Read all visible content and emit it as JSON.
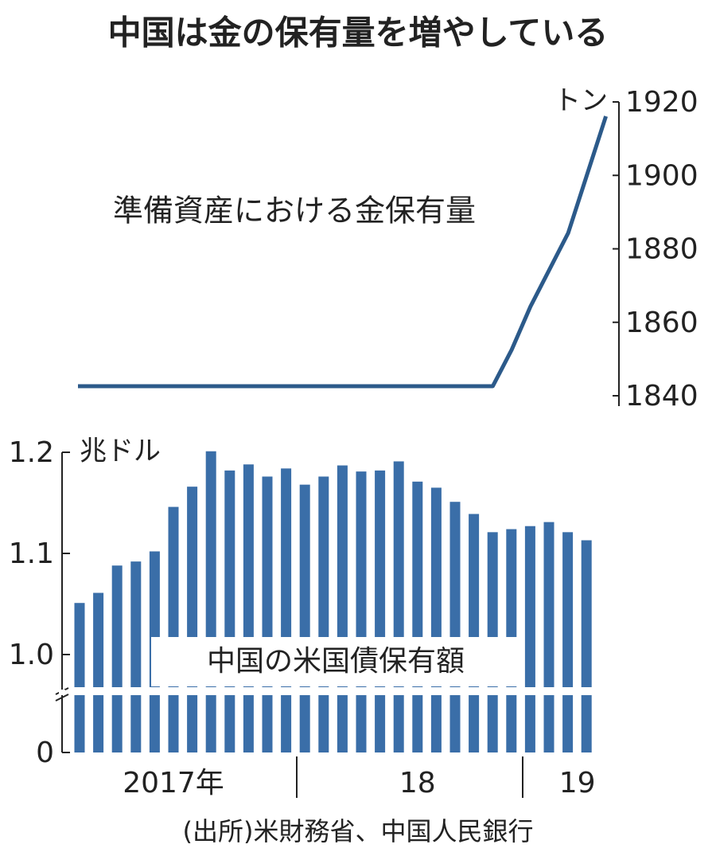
{
  "title": "中国は金の保有量を増やしている",
  "source": "(出所)米財務省、中国人民銀行",
  "chart_data": [
    {
      "type": "line",
      "annotation": "準備資産における金保有量",
      "y_label": "トン",
      "categories": [
        null,
        null,
        null,
        null,
        null,
        null,
        null,
        null,
        null,
        null,
        null,
        null,
        null,
        null,
        null,
        null,
        null,
        null,
        null,
        null,
        null,
        null,
        null,
        null,
        null,
        null,
        null,
        null,
        null
      ],
      "series": [
        {
          "name": "準備資産における金保有量",
          "color": "#2c5a8a",
          "values": [
            1842.6,
            1842.6,
            1842.6,
            1842.6,
            1842.6,
            1842.6,
            1842.6,
            1842.6,
            1842.6,
            1842.6,
            1842.6,
            1842.6,
            1842.6,
            1842.6,
            1842.6,
            1842.6,
            1842.6,
            1842.6,
            1842.6,
            1842.6,
            1842.6,
            1842.6,
            1842.6,
            1852.5,
            1864.3,
            1874.3,
            1884.3,
            1900.2,
            1916.1
          ]
        }
      ],
      "ylim": [
        1840,
        1920
      ],
      "yticks": [
        1840,
        1860,
        1880,
        1900,
        1920
      ],
      "y_axis_side": "right"
    },
    {
      "type": "bar",
      "annotation": "中国の米国債保有額",
      "y_label": "兆ドル",
      "categories": [
        null,
        null,
        null,
        null,
        null,
        "2017年",
        null,
        null,
        null,
        null,
        null,
        null,
        null,
        null,
        null,
        null,
        null,
        null,
        "18",
        null,
        null,
        null,
        null,
        null,
        null,
        null,
        "19",
        null
      ],
      "values": [
        1.051,
        1.061,
        1.088,
        1.092,
        1.102,
        1.146,
        1.166,
        1.201,
        1.182,
        1.188,
        1.176,
        1.184,
        1.168,
        1.176,
        1.187,
        1.181,
        1.182,
        1.191,
        1.171,
        1.165,
        1.151,
        1.139,
        1.121,
        1.124,
        1.127,
        1.131,
        1.121,
        1.113
      ],
      "color": "#3a6ea8",
      "ylim": [
        0,
        1.2
      ],
      "y_break": [
        0,
        1.0
      ],
      "yticks": [
        0,
        {
          "value": 1.0,
          "label": "1.0"
        },
        1.1,
        1.2
      ]
    }
  ]
}
